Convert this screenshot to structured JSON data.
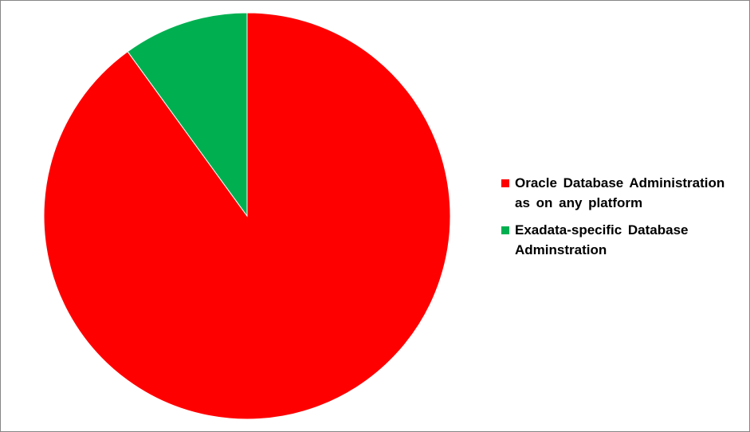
{
  "chart_data": {
    "type": "pie",
    "categories": [
      "Oracle Database Administration as on any platform",
      "Exadata-specific Database Adminstration"
    ],
    "values": [
      90,
      10
    ],
    "colors": [
      "#FF0000",
      "#00B050"
    ],
    "start_angle": "12 o'clock",
    "direction": "clockwise",
    "legend_position": "right",
    "title": ""
  }
}
